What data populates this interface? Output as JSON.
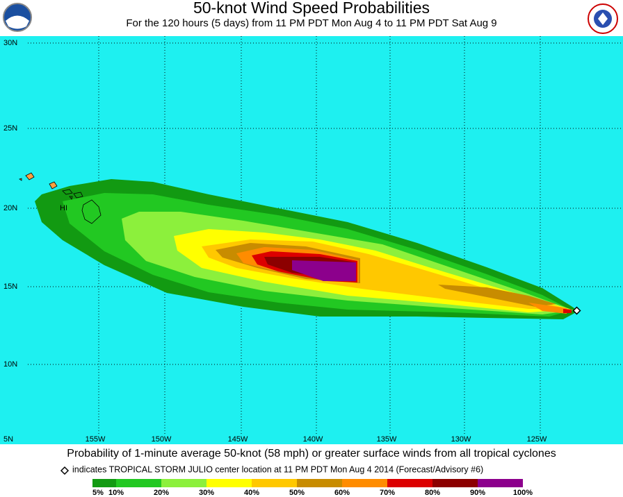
{
  "header": {
    "title": "50-knot Wind Speed Probabilities",
    "subtitle": "For the 120 hours (5 days) from 11 PM PDT Mon Aug 4 to 11 PM PDT Sat Aug 9"
  },
  "map": {
    "lat_labels": [
      "30N",
      "25N",
      "20N",
      "15N",
      "10N",
      "5N"
    ],
    "lon_labels": [
      "155W",
      "150W",
      "145W",
      "140W",
      "135W",
      "130W",
      "125W"
    ],
    "place_label": "HI"
  },
  "footer": {
    "caption": "Probability of 1-minute average 50-knot (58 mph) or greater surface winds from all tropical cyclones",
    "note": "indicates TROPICAL STORM JULIO center location at 11 PM PDT Mon Aug 4 2014 (Forecast/Advisory #6)"
  },
  "legend": {
    "labels": [
      "5%",
      "10%",
      "20%",
      "30%",
      "40%",
      "50%",
      "60%",
      "70%",
      "80%",
      "90%",
      "100%"
    ],
    "colors": [
      "#129a12",
      "#22c822",
      "#8cf03c",
      "#ffff00",
      "#ffc800",
      "#c88c00",
      "#ff8c00",
      "#dc0000",
      "#8c0000",
      "#8c008c"
    ]
  }
}
